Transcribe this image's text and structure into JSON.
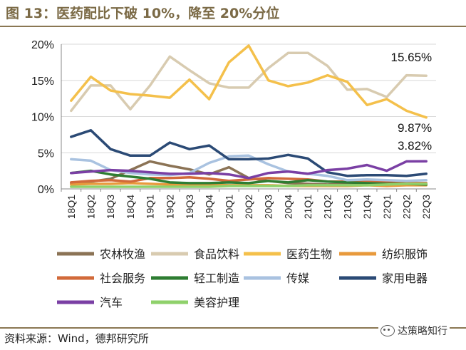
{
  "title": "图 13：医药配比下破 10%，降至 20%分位",
  "source": "资料来源：Wind，德邦研究所",
  "watermark": "达策略知行",
  "chart_data": {
    "type": "line",
    "categories": [
      "18Q1",
      "18Q2",
      "18Q3",
      "18Q4",
      "19Q1",
      "19Q2",
      "19Q3",
      "19Q4",
      "20Q1",
      "20Q2",
      "20Q3",
      "20Q4",
      "21Q1",
      "21Q2",
      "21Q3",
      "21Q4",
      "22Q1",
      "22Q2",
      "22Q3"
    ],
    "ylim": [
      0,
      20
    ],
    "yticks": [
      "0%",
      "5%",
      "10%",
      "15%",
      "20%"
    ],
    "ytick_values": [
      0,
      5,
      10,
      15,
      20
    ],
    "series": [
      {
        "name": "农林牧渔",
        "color": "#8b7355",
        "values": [
          0.8,
          1.0,
          1.4,
          2.6,
          3.8,
          3.2,
          2.7,
          2.0,
          3.0,
          1.5,
          1.1,
          0.8,
          0.7,
          0.6,
          0.7,
          0.8,
          0.7,
          0.7,
          0.7
        ]
      },
      {
        "name": "食品饮料",
        "color": "#d8cbb0",
        "values": [
          10.8,
          14.3,
          14.3,
          11.0,
          14.3,
          18.3,
          16.4,
          14.6,
          14.0,
          14.0,
          16.7,
          18.8,
          18.8,
          17.0,
          13.7,
          13.8,
          12.7,
          15.7,
          15.65
        ]
      },
      {
        "name": "医药生物",
        "color": "#f4c04b",
        "values": [
          12.2,
          15.5,
          13.6,
          13.1,
          12.9,
          12.6,
          15.1,
          12.4,
          17.5,
          19.8,
          15.0,
          14.2,
          14.7,
          15.7,
          14.8,
          11.6,
          12.4,
          10.8,
          9.87
        ]
      },
      {
        "name": "纺织服饰",
        "color": "#e89a3c",
        "values": [
          0.6,
          0.7,
          0.7,
          0.8,
          0.7,
          0.6,
          0.6,
          0.6,
          0.5,
          0.5,
          0.5,
          0.4,
          0.4,
          0.4,
          0.4,
          0.5,
          0.4,
          0.5,
          0.5
        ]
      },
      {
        "name": "社会服务",
        "color": "#d26a3a",
        "values": [
          0.9,
          1.1,
          1.2,
          1.0,
          1.5,
          1.5,
          1.6,
          1.4,
          1.1,
          1.3,
          1.5,
          1.4,
          1.3,
          1.0,
          1.0,
          1.0,
          0.9,
          0.8,
          0.8
        ]
      },
      {
        "name": "轻工制造",
        "color": "#2e7d32",
        "values": [
          2.2,
          2.5,
          2.0,
          1.7,
          1.4,
          0.9,
          0.8,
          0.8,
          0.9,
          0.8,
          1.1,
          0.9,
          1.2,
          1.0,
          0.9,
          0.8,
          0.7,
          0.7,
          0.6
        ]
      },
      {
        "name": "传媒",
        "color": "#a9c2e0",
        "values": [
          4.1,
          3.9,
          2.6,
          2.2,
          2.0,
          1.9,
          2.2,
          3.6,
          4.5,
          4.6,
          3.4,
          2.4,
          2.1,
          1.8,
          1.2,
          1.3,
          1.2,
          1.1,
          1.2
        ]
      },
      {
        "name": "家用电器",
        "color": "#2b4a75",
        "values": [
          7.2,
          8.1,
          5.5,
          4.6,
          4.6,
          6.4,
          5.5,
          6.0,
          4.1,
          4.1,
          4.2,
          4.7,
          4.2,
          2.3,
          1.8,
          1.9,
          1.9,
          1.8,
          2.1
        ]
      },
      {
        "name": "汽车",
        "color": "#7a3fa4",
        "values": [
          2.2,
          2.4,
          2.6,
          2.5,
          2.3,
          2.1,
          2.1,
          2.2,
          2.0,
          1.5,
          2.2,
          2.4,
          2.1,
          2.6,
          2.8,
          3.3,
          2.5,
          3.8,
          3.82
        ]
      },
      {
        "name": "美容护理",
        "color": "#8fd16b",
        "values": [
          0.3,
          0.3,
          0.3,
          0.3,
          0.3,
          0.3,
          0.3,
          0.3,
          0.4,
          0.4,
          0.4,
          0.4,
          0.5,
          0.5,
          0.5,
          0.5,
          0.6,
          0.7,
          0.7
        ]
      }
    ],
    "annotations": [
      {
        "text": "15.65%",
        "series": "食品饮料",
        "category": "22Q3",
        "value": 15.65
      },
      {
        "text": "9.87%",
        "series": "医药生物",
        "category": "22Q3",
        "value": 9.87
      },
      {
        "text": "3.82%",
        "series": "汽车",
        "category": "22Q3",
        "value": 3.82
      }
    ],
    "legend_position": "bottom"
  }
}
